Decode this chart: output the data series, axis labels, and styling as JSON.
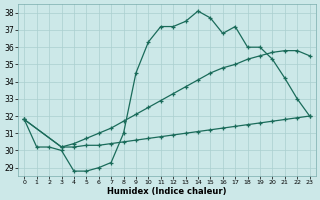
{
  "xlabel": "Humidex (Indice chaleur)",
  "xlim": [
    -0.5,
    23.5
  ],
  "ylim": [
    28.5,
    38.5
  ],
  "yticks": [
    29,
    30,
    31,
    32,
    33,
    34,
    35,
    36,
    37,
    38
  ],
  "xticks": [
    0,
    1,
    2,
    3,
    4,
    5,
    6,
    7,
    8,
    9,
    10,
    11,
    12,
    13,
    14,
    15,
    16,
    17,
    18,
    19,
    20,
    21,
    22,
    23
  ],
  "bg_color": "#cce8e8",
  "grid_color": "#aacfcf",
  "line_color": "#1a6b5a",
  "line1_x": [
    0,
    1,
    2,
    3,
    4,
    5,
    6,
    7,
    8,
    9,
    10,
    11,
    12,
    13,
    14,
    15,
    16,
    17,
    18,
    19,
    20,
    21,
    22,
    23
  ],
  "line1_y": [
    31.8,
    30.2,
    30.2,
    30.0,
    28.8,
    28.8,
    29.0,
    29.3,
    31.0,
    34.5,
    36.3,
    37.2,
    37.2,
    37.5,
    38.1,
    37.7,
    36.8,
    37.2,
    36.0,
    36.0,
    35.3,
    34.2,
    33.0,
    32.0
  ],
  "line2_x": [
    0,
    3,
    23
  ],
  "line2_y": [
    31.8,
    30.2,
    32.0
  ],
  "line3_x": [
    0,
    3,
    23
  ],
  "line3_y": [
    31.8,
    30.2,
    35.5
  ],
  "line2_full_x": [
    0,
    3,
    4,
    5,
    6,
    7,
    8,
    9,
    10,
    11,
    12,
    13,
    14,
    15,
    16,
    17,
    18,
    19,
    20,
    21,
    22,
    23
  ],
  "line2_full_y": [
    31.8,
    30.2,
    30.2,
    30.3,
    30.3,
    30.4,
    30.5,
    30.6,
    30.7,
    30.8,
    30.9,
    31.0,
    31.1,
    31.2,
    31.3,
    31.4,
    31.5,
    31.6,
    31.7,
    31.8,
    31.9,
    32.0
  ],
  "line3_full_x": [
    0,
    3,
    4,
    5,
    6,
    7,
    8,
    9,
    10,
    11,
    12,
    13,
    14,
    15,
    16,
    17,
    18,
    19,
    20,
    21,
    22,
    23
  ],
  "line3_full_y": [
    31.8,
    30.2,
    30.4,
    30.7,
    31.0,
    31.3,
    31.7,
    32.1,
    32.5,
    32.9,
    33.3,
    33.7,
    34.1,
    34.5,
    34.8,
    35.0,
    35.3,
    35.5,
    35.7,
    35.8,
    35.8,
    35.5
  ]
}
